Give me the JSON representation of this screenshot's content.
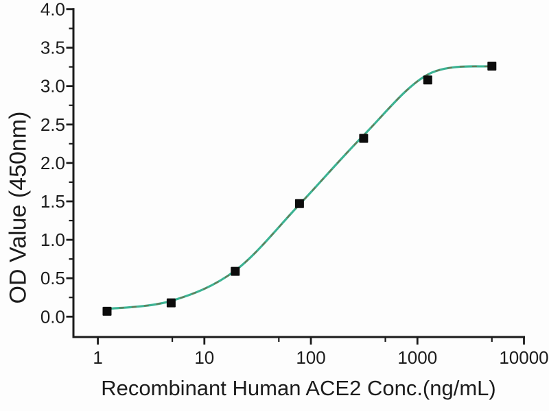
{
  "figure": {
    "background": "#fdfdfd",
    "axis_color": "#1b1b1b",
    "text_color": "#1c1c1c"
  },
  "chart_data": {
    "type": "scatter",
    "title": "",
    "xlabel": "Recombinant Human ACE2 Conc.(ng/mL)",
    "ylabel": "OD Value (450nm)",
    "x_scale": "log",
    "grid": false,
    "legend": false,
    "xlim": [
      0.59,
      10000
    ],
    "ylim": [
      -0.265,
      4.0
    ],
    "x": [
      1.22,
      4.88,
      19.5,
      78.1,
      312.5,
      1250,
      5000
    ],
    "y": [
      0.07,
      0.18,
      0.59,
      1.47,
      2.32,
      3.08,
      3.26
    ],
    "fit_curve": {
      "x": [
        1.22,
        4.88,
        19.5,
        78.1,
        312.5,
        1250,
        5000
      ],
      "y": [
        0.1,
        0.205,
        0.6,
        1.46,
        2.36,
        3.15,
        3.26
      ]
    },
    "x_ticks": {
      "major": [
        1,
        10,
        100,
        1000,
        10000
      ],
      "labels": [
        "1",
        "10",
        "100",
        "1000",
        "10000"
      ],
      "minor": [
        5,
        50,
        500,
        5000
      ]
    },
    "y_ticks": {
      "major": [
        0,
        0.5,
        1.0,
        1.5,
        2.0,
        2.5,
        3.0,
        3.5,
        4.0
      ],
      "labels": [
        "0.0",
        "0.5",
        "1.0",
        "1.5",
        "2.0",
        "2.5",
        "3.0",
        "3.5",
        "4.0"
      ],
      "minor": [
        0.25,
        0.75,
        1.25,
        1.75,
        2.25,
        2.75,
        3.25,
        3.75
      ]
    },
    "marker": {
      "shape": "square",
      "color": "#0c0c0c",
      "size": 13
    },
    "line": {
      "color": "#3cb393",
      "width": 3.2,
      "dash_overlay_color": "#8a4a22",
      "dash_overlay_opacity": 0.55
    }
  }
}
